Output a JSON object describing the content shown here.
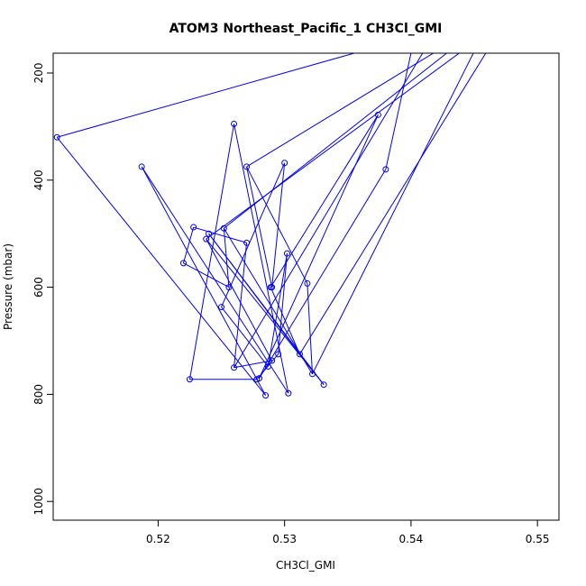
{
  "chart_data": {
    "type": "line",
    "title": "ATOM3 Northeast_Pacific_1 CH3Cl_GMI",
    "xlabel": "CH3Cl_GMI",
    "ylabel": "Pressure (mbar)",
    "xlim": [
      0.5117,
      0.5517
    ],
    "ylim": [
      1035,
      163
    ],
    "y_reversed": true,
    "grid": false,
    "x_ticks": [
      {
        "value": 0.52,
        "label": "0.52"
      },
      {
        "value": 0.53,
        "label": "0.53"
      },
      {
        "value": 0.54,
        "label": "0.54"
      },
      {
        "value": 0.55,
        "label": "0.55"
      }
    ],
    "y_ticks": [
      {
        "value": 200,
        "label": "200"
      },
      {
        "value": 400,
        "label": "400"
      },
      {
        "value": 600,
        "label": "600"
      },
      {
        "value": 800,
        "label": "800"
      },
      {
        "value": 1000,
        "label": "1000"
      }
    ],
    "colors": {
      "series": "#0000ee",
      "axis": "#000000",
      "background": "#ffffff"
    },
    "series": [
      {
        "marker": "open-circle",
        "points": [
          {
            "x": 0.5355,
            "y": 163
          },
          {
            "x": 0.512,
            "y": 320
          },
          {
            "x": 0.5285,
            "y": 802
          },
          {
            "x": 0.5187,
            "y": 375
          },
          {
            "x": 0.5303,
            "y": 798
          },
          {
            "x": 0.526,
            "y": 295
          },
          {
            "x": 0.5225,
            "y": 772
          },
          {
            "x": 0.5278,
            "y": 772
          },
          {
            "x": 0.5295,
            "y": 725
          },
          {
            "x": 0.5302,
            "y": 537
          },
          {
            "x": 0.5287,
            "y": 748
          },
          {
            "x": 0.525,
            "y": 637
          },
          {
            "x": 0.53,
            "y": 368
          },
          {
            "x": 0.529,
            "y": 600
          },
          {
            "x": 0.527,
            "y": 375
          },
          {
            "x": 0.5318,
            "y": 593
          },
          {
            "x": 0.5322,
            "y": 762
          },
          {
            "x": 0.5252,
            "y": 490
          },
          {
            "x": 0.5256,
            "y": 600
          },
          {
            "x": 0.522,
            "y": 555
          },
          {
            "x": 0.5228,
            "y": 488
          },
          {
            "x": 0.527,
            "y": 517
          },
          {
            "x": 0.526,
            "y": 750
          },
          {
            "x": 0.529,
            "y": 737
          },
          {
            "x": 0.5238,
            "y": 510
          },
          {
            "x": 0.5331,
            "y": 782
          },
          {
            "x": 0.524,
            "y": 500
          },
          {
            "x": 0.5312,
            "y": 725
          },
          {
            "x": 0.5289,
            "y": 600
          },
          {
            "x": 0.5374,
            "y": 278
          },
          {
            "x": 0.528,
            "y": 770
          },
          {
            "x": 0.538,
            "y": 380
          },
          {
            "x": 0.54,
            "y": 163
          }
        ]
      }
    ],
    "offscreen_endpoints": [
      {
        "x": 0.546,
        "y": 163
      },
      {
        "x": 0.544,
        "y": 163
      },
      {
        "x": 0.542,
        "y": 163
      },
      {
        "x": 0.543,
        "y": 163
      },
      {
        "x": 0.545,
        "y": 163
      },
      {
        "x": 0.541,
        "y": 163
      }
    ]
  }
}
